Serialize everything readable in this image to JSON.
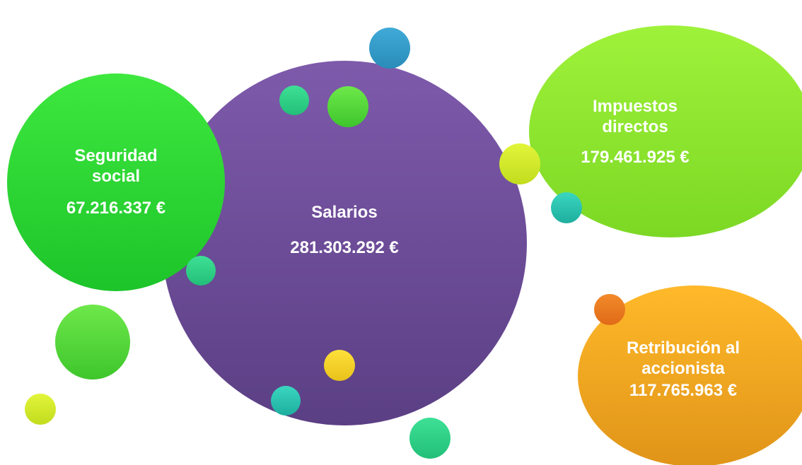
{
  "nodes": [
    {
      "title": "Seguridad social",
      "value": "67.216.337 €"
    },
    {
      "title": "Salarios",
      "value": "281.303.292 €"
    },
    {
      "title": "Impuestos directos",
      "value": "179.461.925 €"
    },
    {
      "title": "Retribución al accionista",
      "value": "117.765.963 €"
    }
  ]
}
